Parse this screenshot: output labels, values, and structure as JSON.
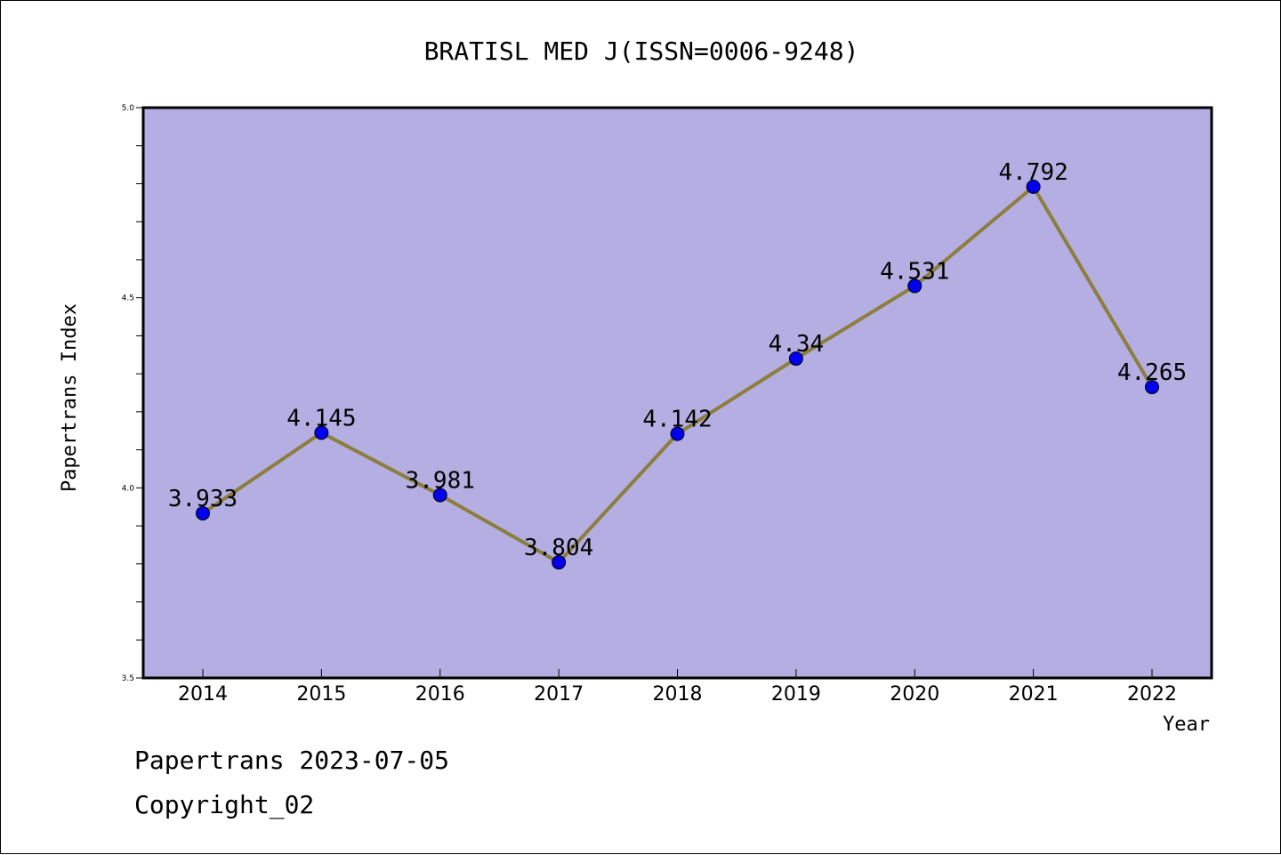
{
  "chart_data": {
    "type": "line",
    "title": "BRATISL MED J(ISSN=0006-9248)",
    "xlabel": "Year",
    "ylabel": "Papertrans Index",
    "categories": [
      "2014",
      "2015",
      "2016",
      "2017",
      "2018",
      "2019",
      "2020",
      "2021",
      "2022"
    ],
    "values": [
      3.933,
      4.145,
      3.981,
      3.804,
      4.142,
      4.34,
      4.531,
      4.792,
      4.265
    ],
    "data_labels": [
      "3.933",
      "4.145",
      "3.981",
      "3.804",
      "4.142",
      "4.34",
      "4.531",
      "4.792",
      "4.265"
    ],
    "ylim": [
      3.5,
      5.0
    ],
    "yticks": [
      "3.5",
      "4.0",
      "4.5",
      "5.0"
    ],
    "grid": false,
    "colors": {
      "plot_background": "#b5aee3",
      "line": "#8c7e3c",
      "marker": "#0000ee"
    }
  },
  "footer": {
    "line1": "Papertrans 2023-07-05",
    "line2": "Copyright_02"
  }
}
